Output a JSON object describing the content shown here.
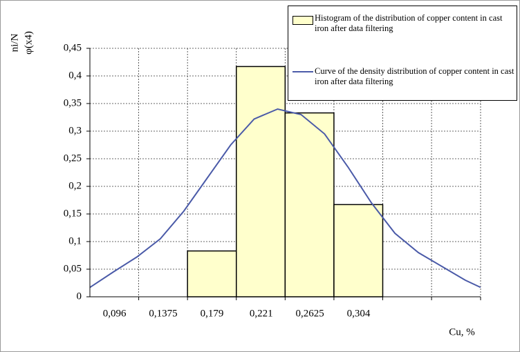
{
  "chart_data": {
    "type": "histogram",
    "ylabel": [
      "ni/N",
      "φ(x4)"
    ],
    "xlabel": "Cu, %",
    "xlim": [
      0.075,
      0.408
    ],
    "ylim": [
      0,
      0.45
    ],
    "yticks": [
      0,
      {
        "value": 0.05,
        "label": "0,05"
      },
      {
        "value": 0.1,
        "label": "0,1"
      },
      {
        "value": 0.15,
        "label": "0,15"
      },
      {
        "value": 0.2,
        "label": "0,2"
      },
      {
        "value": 0.25,
        "label": "0,25"
      },
      {
        "value": 0.3,
        "label": "0,3"
      },
      {
        "value": 0.35,
        "label": "0,35"
      },
      {
        "value": 0.4,
        "label": "0,4"
      },
      {
        "value": 0.45,
        "label": "0,45"
      }
    ],
    "xticks": [
      {
        "value": 0.096,
        "label": "0,096"
      },
      {
        "value": 0.1375,
        "label": "0,1375"
      },
      {
        "value": 0.179,
        "label": "0,179"
      },
      {
        "value": 0.221,
        "label": "0,221"
      },
      {
        "value": 0.2625,
        "label": "0,2625"
      },
      {
        "value": 0.304,
        "label": "0,304"
      }
    ],
    "x_gridlines": [
      0.1166,
      0.1582,
      0.1998,
      0.2414,
      0.283,
      0.3246,
      0.3662,
      0.408
    ],
    "grid": true,
    "series": [
      {
        "name": "Histogram of the distribution of copper content in cast iron after data filtering",
        "type": "histogram",
        "color": "#ffffcc",
        "bins": [
          0.1582,
          0.1998,
          0.2414,
          0.283,
          0.3246
        ],
        "values": [
          0.083,
          0.417,
          0.333,
          0.167
        ]
      },
      {
        "name": "Curve of the density distribution of copper content in cast iron after data filtering",
        "type": "line",
        "color": "#4a5aa8",
        "x": [
          0.075,
          0.095,
          0.115,
          0.135,
          0.155,
          0.175,
          0.195,
          0.215,
          0.235,
          0.255,
          0.275,
          0.295,
          0.315,
          0.335,
          0.355,
          0.375,
          0.395,
          0.408
        ],
        "values": [
          0.017,
          0.045,
          0.072,
          0.105,
          0.155,
          0.215,
          0.275,
          0.322,
          0.34,
          0.33,
          0.295,
          0.235,
          0.17,
          0.115,
          0.08,
          0.055,
          0.03,
          0.017
        ]
      }
    ]
  }
}
